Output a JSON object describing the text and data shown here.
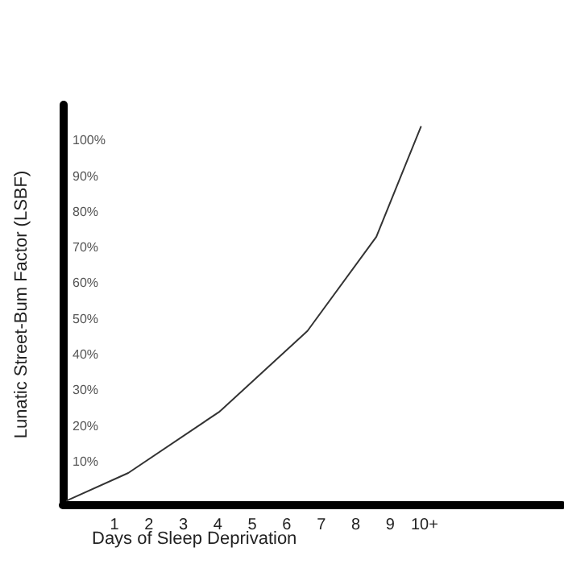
{
  "chart_data": {
    "type": "line",
    "xlabel": "Days of Sleep Deprivation",
    "ylabel": "Lunatic Street-Bum Factor (LSBF)",
    "x": [
      -0.4,
      1.4,
      4.05,
      6.6,
      8.6,
      9.9
    ],
    "values": [
      -1,
      6.8,
      24,
      46.6,
      73,
      104
    ],
    "color": "#333333",
    "xlim": [
      -0.5,
      14
    ],
    "ylim": [
      -2,
      110
    ],
    "xticks": [
      1,
      2,
      3,
      4,
      5,
      6,
      7,
      8,
      9,
      {
        "value": 10,
        "label": "10+"
      }
    ],
    "yticks": [
      {
        "value": 10,
        "label": "10%"
      },
      {
        "value": 20,
        "label": "20%"
      },
      {
        "value": 30,
        "label": "30%"
      },
      {
        "value": 40,
        "label": "40%"
      },
      {
        "value": 50,
        "label": "50%"
      },
      {
        "value": 60,
        "label": "60%"
      },
      {
        "value": 70,
        "label": "70%"
      },
      {
        "value": 80,
        "label": "80%"
      },
      {
        "value": 90,
        "label": "90%"
      },
      {
        "value": 100,
        "label": "100%"
      }
    ],
    "grid": false,
    "marker": "none",
    "line_style": "solid"
  }
}
